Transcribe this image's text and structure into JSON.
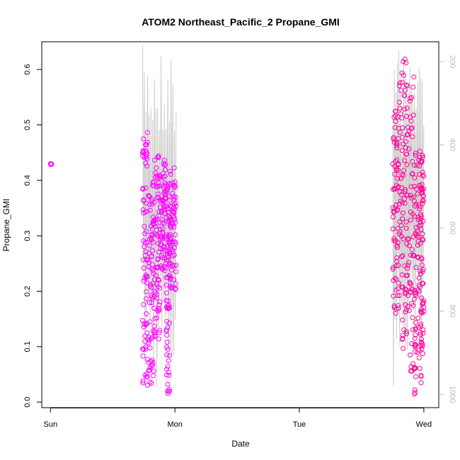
{
  "chart_data": {
    "type": "scatter",
    "title": "ATOM2 Northeast_Pacific_2 Propane_GMI",
    "xlabel": "Date",
    "ylabel": "Propane_GMI",
    "x_ticks": [
      "Sun",
      "Mon",
      "Tue",
      "Wed"
    ],
    "y_ticks": [
      "0.0",
      "0.1",
      "0.2",
      "0.3",
      "0.4",
      "0.5",
      "0.6"
    ],
    "y2_ticks": [
      "200",
      "400",
      "600",
      "800",
      "1000"
    ],
    "xlim_days": [
      -0.07,
      3.12
    ],
    "ylim": [
      -0.01,
      0.65
    ],
    "y2lim_hpa": [
      1032,
      152
    ],
    "grid": false,
    "colors": {
      "points_mon": "#ff00ff",
      "points_wed": "#ff0099",
      "pressure_line": "#c0c0c0",
      "axis": "#000000",
      "secondary_axis": "#bbbbbb"
    },
    "series": [
      {
        "marker": "open-circle",
        "segments": [
          {
            "day_start": 0.0,
            "day_end": 0.01,
            "y_min": 0.425,
            "y_max": 0.432
          },
          {
            "day_start": 0.74,
            "day_end": 0.78,
            "y_min": 0.034,
            "y_max": 0.489
          },
          {
            "day_start": 0.78,
            "day_end": 0.83,
            "y_min": 0.028,
            "y_max": 0.4
          },
          {
            "day_start": 0.83,
            "day_end": 0.88,
            "y_min": 0.11,
            "y_max": 0.454
          },
          {
            "day_start": 0.88,
            "day_end": 0.93,
            "y_min": 0.235,
            "y_max": 0.44
          },
          {
            "day_start": 0.93,
            "day_end": 0.96,
            "y_min": 0.015,
            "y_max": 0.395
          },
          {
            "day_start": 0.96,
            "day_end": 1.01,
            "y_min": 0.2,
            "y_max": 0.43
          },
          {
            "day_start": 2.75,
            "day_end": 2.8,
            "y_min": 0.155,
            "y_max": 0.53
          },
          {
            "day_start": 2.8,
            "day_end": 2.86,
            "y_min": 0.095,
            "y_max": 0.625
          },
          {
            "day_start": 2.86,
            "day_end": 2.92,
            "y_min": 0.055,
            "y_max": 0.59
          },
          {
            "day_start": 2.92,
            "day_end": 2.97,
            "y_min": 0.01,
            "y_max": 0.46
          },
          {
            "day_start": 2.97,
            "day_end": 3.0,
            "y_min": 0.03,
            "y_max": 0.45
          }
        ]
      }
    ],
    "pressure_hpa": {
      "axis": "right",
      "line_segments": [
        {
          "day_start": 0.74,
          "day_end": 1.01,
          "hpa_min": 160,
          "hpa_max": 1000
        },
        {
          "day_start": 2.75,
          "day_end": 3.0,
          "hpa_min": 160,
          "hpa_max": 1000
        }
      ]
    }
  }
}
